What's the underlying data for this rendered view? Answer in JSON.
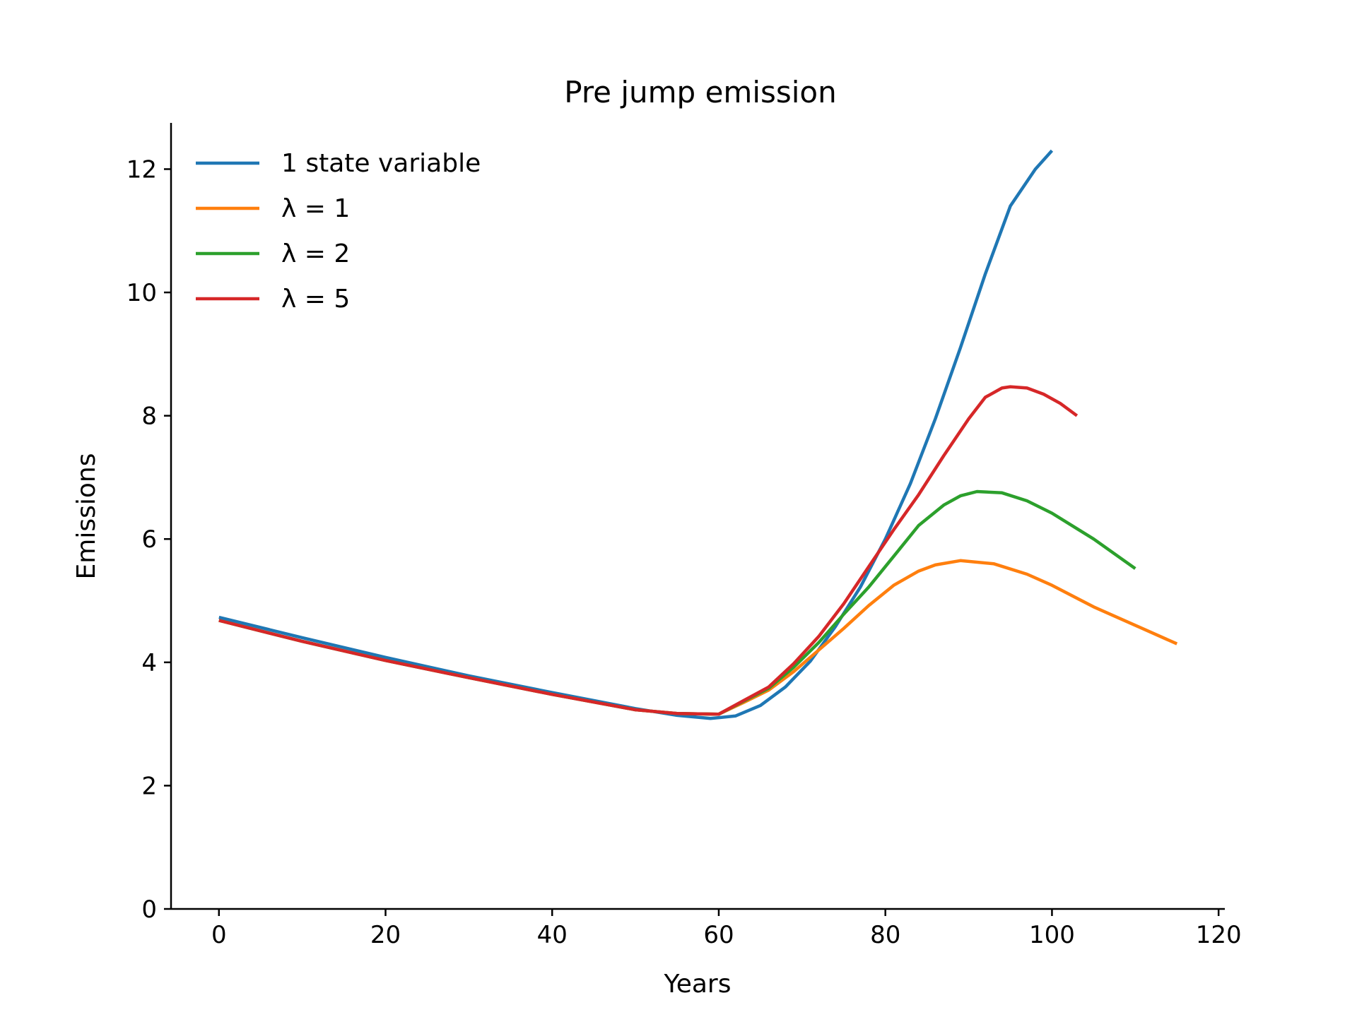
{
  "chart_data": {
    "type": "line",
    "title": "Pre jump emission",
    "xlabel": "Years",
    "ylabel": "Emissions",
    "xlim": [
      -5.75,
      120.75
    ],
    "ylim": [
      0,
      12.75
    ],
    "xticks": [
      0,
      20,
      40,
      60,
      80,
      100,
      120
    ],
    "yticks": [
      0,
      2,
      4,
      6,
      8,
      10,
      12
    ],
    "grid": false,
    "legend_position": "upper-left",
    "series": [
      {
        "name": "1 state variable",
        "color": "#1f77b4",
        "x": [
          0,
          10,
          20,
          30,
          40,
          50,
          55,
          59,
          62,
          65,
          68,
          71,
          74,
          77,
          80,
          83,
          86,
          89,
          92,
          95,
          98,
          100
        ],
        "y": [
          4.73,
          4.4,
          4.08,
          3.78,
          3.51,
          3.25,
          3.14,
          3.09,
          3.13,
          3.3,
          3.6,
          4.02,
          4.58,
          5.22,
          6.0,
          6.9,
          7.95,
          9.1,
          10.3,
          11.4,
          12.0,
          12.3
        ]
      },
      {
        "name": "λ = 1",
        "color": "#ff7f0e",
        "x": [
          0,
          10,
          20,
          30,
          40,
          50,
          55,
          60,
          63,
          66,
          69,
          72,
          75,
          78,
          81,
          84,
          86,
          89,
          93,
          97,
          100,
          105,
          110,
          115
        ],
        "y": [
          4.68,
          4.34,
          4.03,
          3.75,
          3.48,
          3.23,
          3.17,
          3.16,
          3.35,
          3.55,
          3.85,
          4.2,
          4.55,
          4.92,
          5.25,
          5.48,
          5.58,
          5.65,
          5.6,
          5.43,
          5.25,
          4.9,
          4.6,
          4.3
        ]
      },
      {
        "name": "λ = 2",
        "color": "#2ca02c",
        "x": [
          0,
          10,
          20,
          30,
          40,
          50,
          55,
          60,
          63,
          66,
          69,
          72,
          75,
          78,
          81,
          84,
          87,
          89,
          91,
          94,
          97,
          100,
          105,
          110
        ],
        "y": [
          4.68,
          4.34,
          4.03,
          3.75,
          3.48,
          3.23,
          3.17,
          3.16,
          3.37,
          3.58,
          3.92,
          4.32,
          4.78,
          5.22,
          5.72,
          6.22,
          6.55,
          6.7,
          6.77,
          6.75,
          6.62,
          6.42,
          6.0,
          5.52
        ]
      },
      {
        "name": "λ = 5",
        "color": "#d62728",
        "x": [
          0,
          10,
          20,
          30,
          40,
          50,
          55,
          60,
          63,
          66,
          69,
          72,
          75,
          78,
          81,
          84,
          87,
          90,
          92,
          94,
          95,
          97,
          99,
          101,
          103
        ],
        "y": [
          4.68,
          4.34,
          4.03,
          3.75,
          3.48,
          3.23,
          3.17,
          3.16,
          3.38,
          3.6,
          3.98,
          4.42,
          4.95,
          5.55,
          6.15,
          6.72,
          7.35,
          7.95,
          8.3,
          8.45,
          8.47,
          8.45,
          8.35,
          8.2,
          8.0
        ]
      }
    ]
  }
}
